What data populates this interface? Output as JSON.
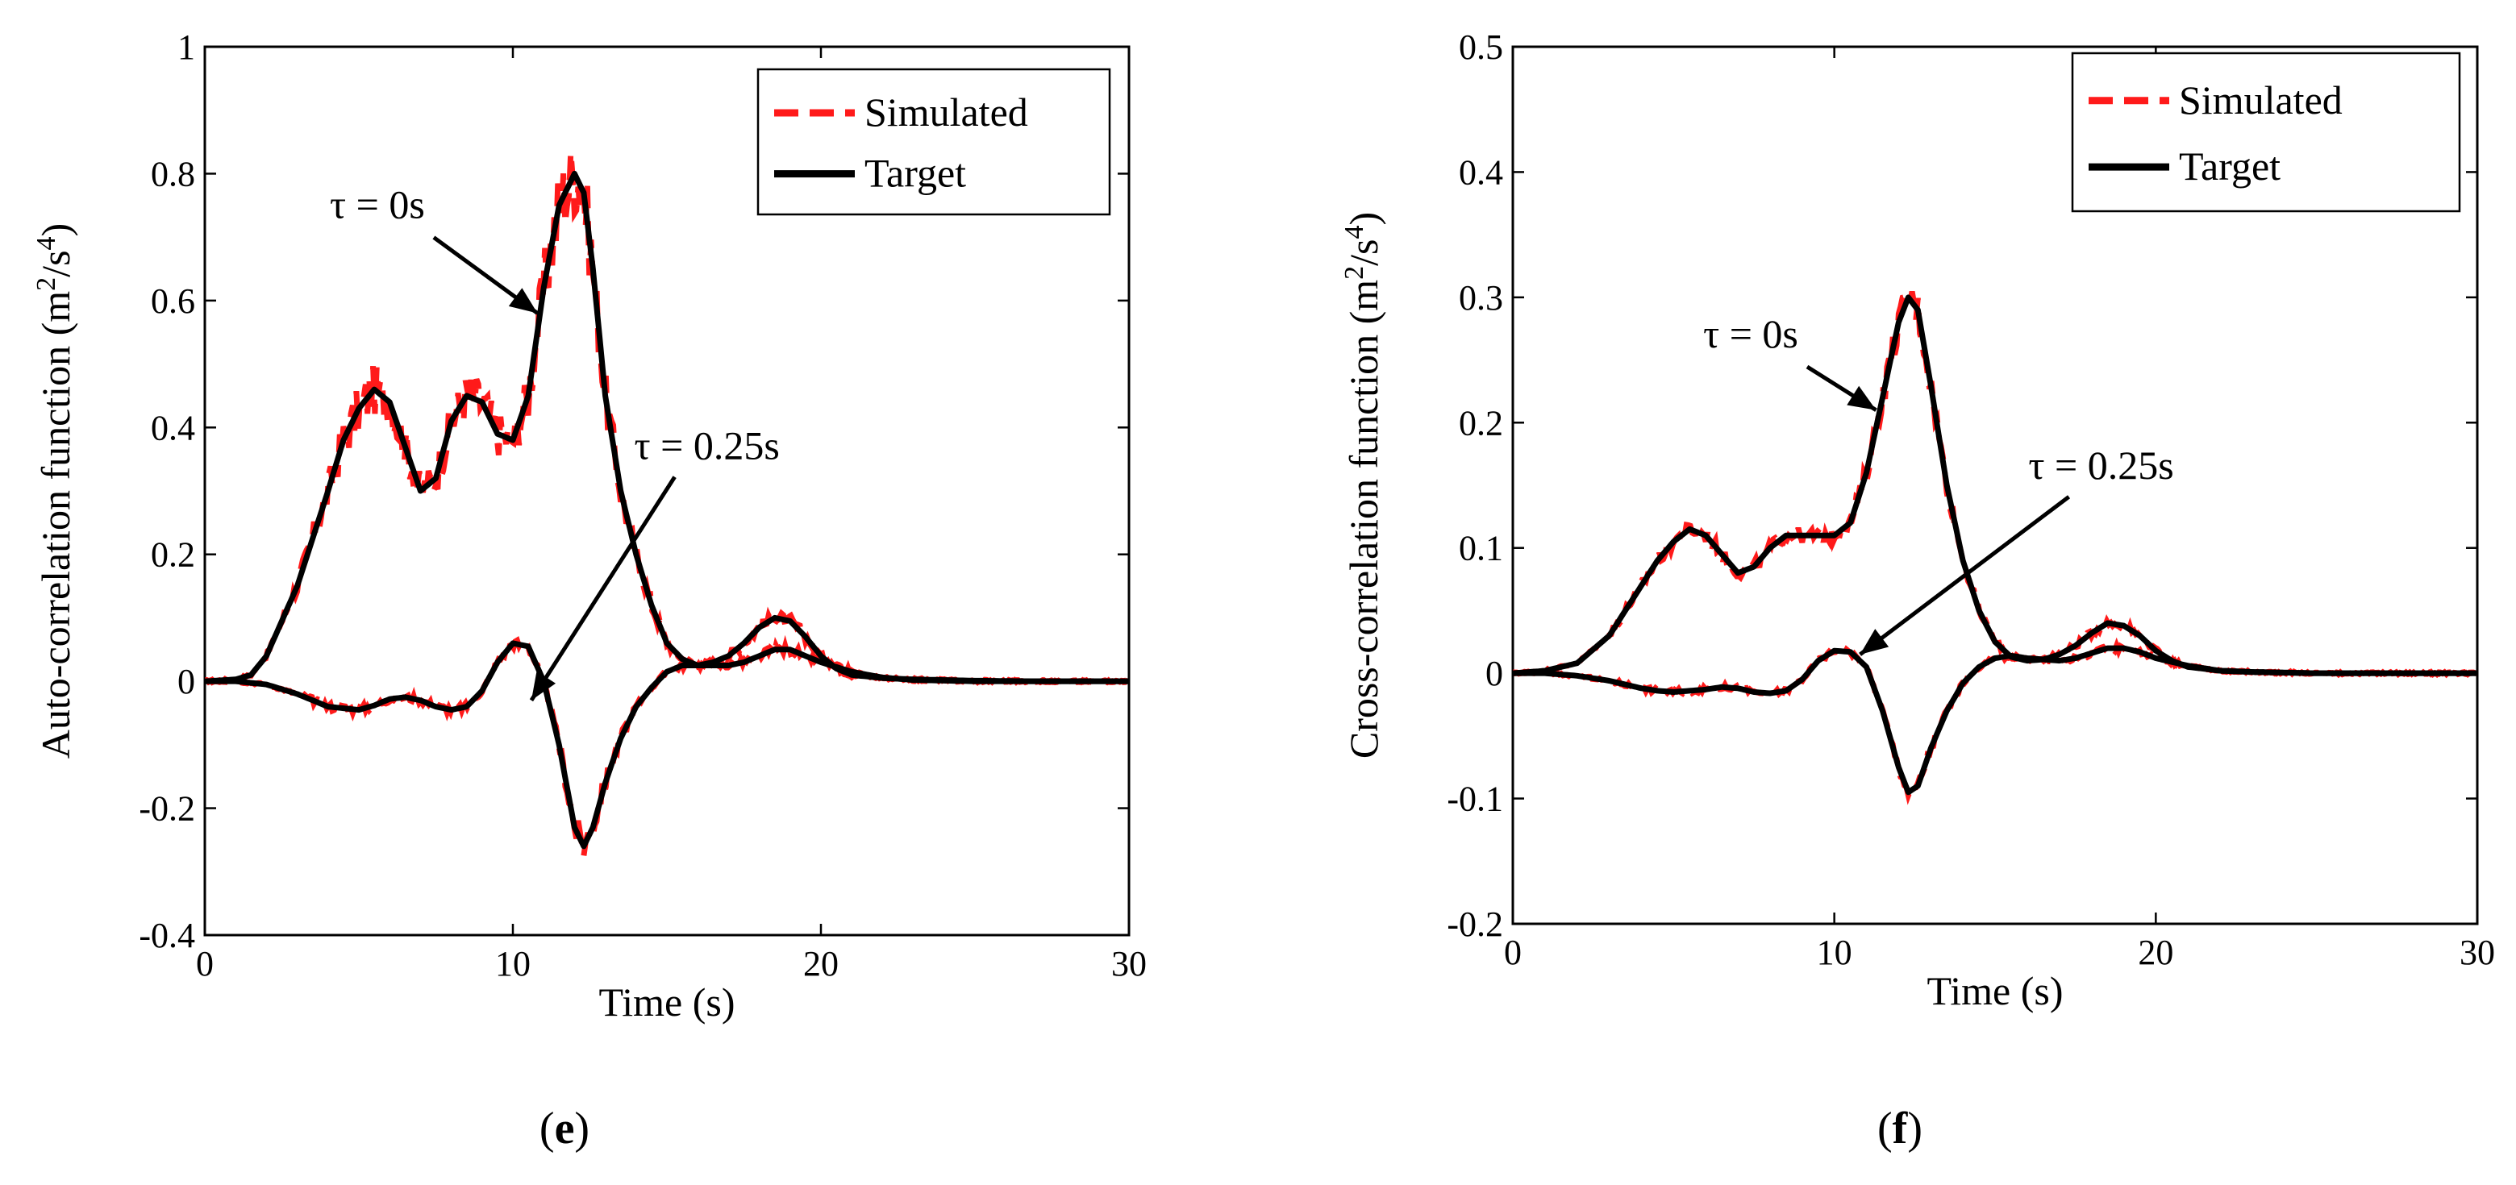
{
  "figure": {
    "panels": [
      "e",
      "f"
    ]
  },
  "chart_data": [
    {
      "type": "line",
      "panel_label": "e",
      "xlabel": "Time (s)",
      "ylabel": "Auto-correlation function (m",
      "ylabel_unit_mid": "/s",
      "ylabel_unit_end": ")",
      "ylabel_sup1": "2",
      "ylabel_sup2": "4",
      "xlim": [
        0,
        30
      ],
      "ylim": [
        -0.4,
        1.0
      ],
      "xticks": [
        0,
        10,
        20,
        30
      ],
      "xtick_labels": [
        "0",
        "10",
        "20",
        "30"
      ],
      "yticks": [
        -0.4,
        -0.2,
        0,
        0.2,
        0.4,
        0.6,
        0.8,
        1.0
      ],
      "ytick_labels": [
        "-0.4",
        "-0.2",
        "0",
        "0.2",
        "0.4",
        "0.6",
        "0.8",
        "1"
      ],
      "legend": {
        "position": "top-right",
        "entries": [
          "Simulated",
          "Target"
        ]
      },
      "annotations": [
        {
          "text": "τ = 0s",
          "x": 5.6,
          "y": 0.73,
          "arrow_to": [
            10.8,
            0.58
          ]
        },
        {
          "text": "τ = 0.25s",
          "x": 16.3,
          "y": 0.35,
          "arrow_to": [
            10.6,
            -0.03
          ]
        }
      ],
      "series": [
        {
          "name": "Target τ = 0s",
          "style": "solid-black",
          "x": [
            0,
            1,
            1.5,
            2,
            3,
            4,
            4.5,
            5,
            5.5,
            6,
            6.5,
            7,
            7.5,
            8,
            8.5,
            9,
            9.5,
            10,
            10.5,
            11,
            11.5,
            12,
            12.3,
            12.6,
            13,
            13.5,
            14,
            14.5,
            15,
            15.5,
            16,
            16.5,
            17,
            17.5,
            18,
            18.5,
            19,
            19.5,
            20,
            20.5,
            21,
            22,
            23,
            25,
            27,
            30
          ],
          "y": [
            0,
            0.003,
            0.01,
            0.04,
            0.15,
            0.3,
            0.38,
            0.43,
            0.46,
            0.44,
            0.37,
            0.3,
            0.32,
            0.41,
            0.45,
            0.44,
            0.39,
            0.38,
            0.45,
            0.62,
            0.75,
            0.8,
            0.77,
            0.65,
            0.45,
            0.3,
            0.2,
            0.12,
            0.06,
            0.035,
            0.025,
            0.03,
            0.04,
            0.06,
            0.085,
            0.1,
            0.095,
            0.07,
            0.04,
            0.02,
            0.01,
            0.005,
            0.003,
            0.001,
            0,
            0
          ]
        },
        {
          "name": "Target τ = 0.25s",
          "style": "solid-black",
          "x": [
            0,
            1,
            2,
            3,
            3.5,
            4,
            5,
            5.5,
            6,
            6.5,
            7,
            7.5,
            8,
            8.5,
            9,
            9.5,
            10,
            10.5,
            11,
            11.5,
            12,
            12.3,
            12.6,
            13,
            13.5,
            14,
            14.5,
            15,
            15.5,
            16,
            17,
            17.5,
            18,
            18.5,
            19,
            19.5,
            20,
            21,
            22,
            23,
            25,
            27,
            30
          ],
          "y": [
            0,
            0,
            -0.005,
            -0.02,
            -0.03,
            -0.04,
            -0.045,
            -0.038,
            -0.028,
            -0.025,
            -0.03,
            -0.04,
            -0.045,
            -0.04,
            -0.015,
            0.03,
            0.06,
            0.055,
            0.0,
            -0.1,
            -0.23,
            -0.26,
            -0.23,
            -0.16,
            -0.09,
            -0.04,
            -0.01,
            0.015,
            0.025,
            0.025,
            0.025,
            0.03,
            0.04,
            0.05,
            0.05,
            0.04,
            0.03,
            0.015,
            0.006,
            0.002,
            0,
            0,
            0
          ]
        }
      ]
    },
    {
      "type": "line",
      "panel_label": "f",
      "xlabel": "Time (s)",
      "ylabel": "Cross-correlation function (m",
      "ylabel_unit_mid": "/s",
      "ylabel_unit_end": ")",
      "ylabel_sup1": "2",
      "ylabel_sup2": "4",
      "xlim": [
        0,
        30
      ],
      "ylim": [
        -0.2,
        0.5
      ],
      "xticks": [
        0,
        10,
        20,
        30
      ],
      "xtick_labels": [
        "0",
        "10",
        "20",
        "30"
      ],
      "yticks": [
        -0.2,
        -0.1,
        0,
        0.1,
        0.2,
        0.3,
        0.4,
        0.5
      ],
      "ytick_labels": [
        "-0.2",
        "-0.1",
        "0",
        "0.1",
        "0.2",
        "0.3",
        "0.4",
        "0.5"
      ],
      "legend": {
        "position": "top-right",
        "entries": [
          "Simulated",
          "Target"
        ]
      },
      "annotations": [
        {
          "text": "τ = 0s",
          "x": 7.4,
          "y": 0.26,
          "arrow_to": [
            11.3,
            0.21
          ]
        },
        {
          "text": "τ = 0.25s",
          "x": 18.3,
          "y": 0.155,
          "arrow_to": [
            10.8,
            0.015
          ]
        }
      ],
      "series": [
        {
          "name": "Target τ = 0s",
          "style": "solid-black",
          "x": [
            0,
            1,
            2,
            3,
            3.5,
            4,
            4.5,
            5,
            5.5,
            6,
            6.5,
            7,
            7.5,
            8,
            8.5,
            9,
            9.5,
            10,
            10.5,
            11,
            11.5,
            12,
            12.3,
            12.6,
            13,
            13.5,
            14,
            14.5,
            15,
            15.5,
            16,
            16.5,
            17,
            17.5,
            18,
            18.5,
            19,
            19.5,
            20,
            20.5,
            21,
            22,
            23,
            25,
            27,
            30
          ],
          "y": [
            0,
            0.002,
            0.008,
            0.03,
            0.05,
            0.07,
            0.09,
            0.105,
            0.115,
            0.11,
            0.095,
            0.08,
            0.085,
            0.1,
            0.11,
            0.11,
            0.11,
            0.11,
            0.12,
            0.16,
            0.22,
            0.28,
            0.3,
            0.29,
            0.23,
            0.15,
            0.09,
            0.05,
            0.025,
            0.013,
            0.01,
            0.011,
            0.015,
            0.022,
            0.032,
            0.04,
            0.038,
            0.03,
            0.018,
            0.01,
            0.005,
            0.002,
            0.001,
            0,
            0,
            0
          ]
        },
        {
          "name": "Target τ = 0.25s",
          "style": "solid-black",
          "x": [
            0,
            1,
            2,
            3,
            3.5,
            4,
            4.5,
            5,
            6,
            6.5,
            7,
            7.5,
            8,
            8.5,
            9,
            9.5,
            10,
            10.5,
            11,
            11.5,
            12,
            12.3,
            12.6,
            13,
            13.5,
            14,
            14.5,
            15,
            15.5,
            16,
            17,
            17.5,
            18,
            18.5,
            19,
            19.5,
            20,
            21,
            22,
            23,
            25,
            27,
            30
          ],
          "y": [
            0,
            0,
            -0.002,
            -0.006,
            -0.009,
            -0.012,
            -0.014,
            -0.015,
            -0.013,
            -0.011,
            -0.012,
            -0.015,
            -0.016,
            -0.014,
            -0.005,
            0.01,
            0.018,
            0.017,
            0.005,
            -0.03,
            -0.075,
            -0.095,
            -0.09,
            -0.06,
            -0.03,
            -0.008,
            0.005,
            0.012,
            0.014,
            0.012,
            0.01,
            0.012,
            0.016,
            0.02,
            0.02,
            0.017,
            0.012,
            0.006,
            0.002,
            0.001,
            0,
            0,
            0
          ]
        }
      ]
    }
  ]
}
